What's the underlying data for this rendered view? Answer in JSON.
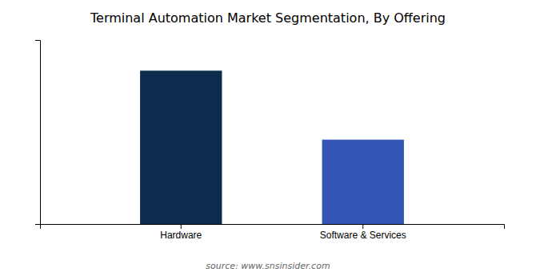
{
  "chart_data": {
    "type": "bar",
    "title": "Terminal Automation Market Segmentation, By Offering",
    "categories": [
      "Hardware",
      "Software & Services"
    ],
    "values": [
      100,
      55
    ],
    "colors": [
      "#0d2d4e",
      "#3355b5"
    ],
    "ylim": [
      0,
      120
    ],
    "grid": false,
    "tick_labels": "x",
    "annotations": [
      "source: www.snsinsider.com"
    ]
  }
}
